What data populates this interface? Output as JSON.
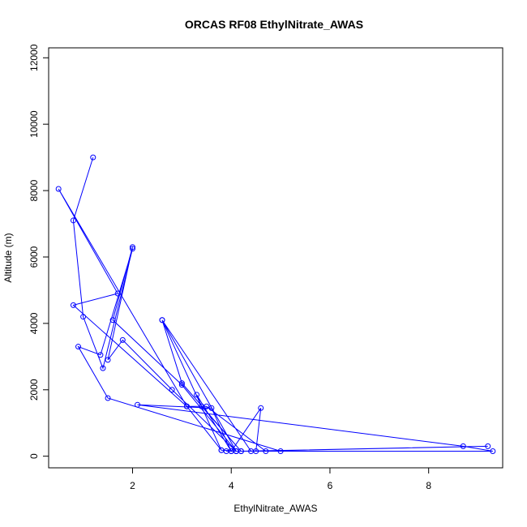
{
  "chart_data": {
    "type": "line",
    "title": "ORCAS RF08 EthylNitrate_AWAS",
    "xlabel": "EthylNitrate_AWAS",
    "ylabel": "Altitude (m)",
    "xlim": [
      0.3,
      9.5
    ],
    "ylim": [
      -350,
      12300
    ],
    "xticks": [
      2,
      4,
      6,
      8
    ],
    "yticks": [
      0,
      2000,
      4000,
      6000,
      8000,
      10000,
      12000
    ],
    "grid": false,
    "legend": "none",
    "marker": "open-circle",
    "color": "#0000ff",
    "series": [
      {
        "points": [
          [
            1.2,
            9000
          ],
          [
            0.8,
            7100
          ],
          [
            1.0,
            4200
          ],
          [
            1.4,
            2650
          ],
          [
            2.0,
            6250
          ],
          [
            1.35,
            3050
          ],
          [
            0.9,
            3300
          ],
          [
            1.5,
            1750
          ],
          [
            5.0,
            150
          ],
          [
            4.7,
            150
          ],
          [
            3.5,
            1500
          ],
          [
            3.1,
            1500
          ],
          [
            0.5,
            8050
          ],
          [
            1.7,
            4900
          ],
          [
            0.8,
            4550
          ],
          [
            3.1,
            1500
          ],
          [
            3.8,
            180
          ],
          [
            4.1,
            150
          ],
          [
            4.2,
            150
          ],
          [
            3.4,
            1500
          ],
          [
            3.3,
            1850
          ],
          [
            4.0,
            150
          ],
          [
            4.6,
            1450
          ],
          [
            4.5,
            150
          ],
          [
            4.0,
            150
          ],
          [
            3.6,
            1450
          ],
          [
            2.1,
            1550
          ],
          [
            8.7,
            300
          ],
          [
            9.3,
            150
          ],
          [
            3.9,
            150
          ],
          [
            4.1,
            150
          ],
          [
            3.0,
            2150
          ],
          [
            1.6,
            4100
          ],
          [
            2.0,
            6300
          ],
          [
            1.5,
            2900
          ],
          [
            1.8,
            3500
          ],
          [
            2.8,
            2000
          ],
          [
            4.1,
            150
          ],
          [
            2.6,
            4100
          ],
          [
            3.0,
            2200
          ],
          [
            4.2,
            150
          ],
          [
            9.2,
            300
          ],
          [
            4.4,
            150
          ],
          [
            2.6,
            4100
          ],
          [
            3.8,
            180
          ]
        ]
      }
    ]
  }
}
